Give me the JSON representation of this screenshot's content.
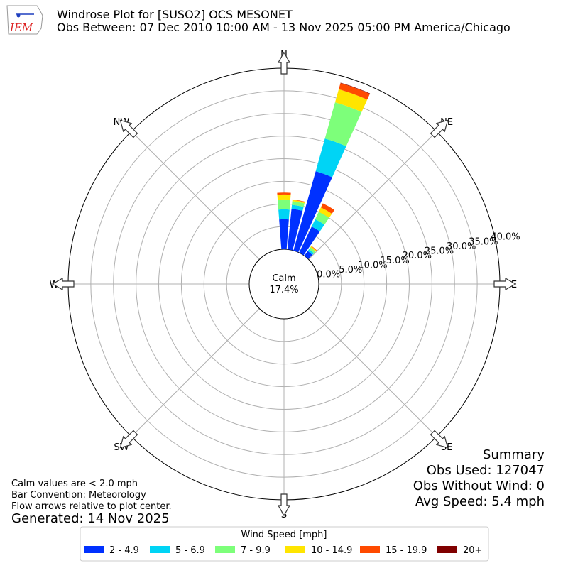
{
  "chart_data": {
    "type": "windrose",
    "title": "Windrose Plot for [SUSO2] OCS MESONET",
    "subtitle": "Obs Between: 07 Dec 2010 10:00 AM - 13 Nov 2025 05:00 PM America/Chicago",
    "logo": "IEM",
    "compass": [
      "N",
      "NE",
      "E",
      "SE",
      "S",
      "SW",
      "W",
      "NW"
    ],
    "directions": [
      0,
      10,
      20,
      30,
      40
    ],
    "series": [
      {
        "name": "2 - 4.9",
        "color": "#0031ff",
        "values": [
          6.6,
          9.0,
          18.2,
          6.4,
          1.3
        ]
      },
      {
        "name": "5 - 6.9",
        "color": "#00d4f5",
        "values": [
          2.2,
          0.9,
          7.5,
          1.8,
          0.5
        ]
      },
      {
        "name": "7 - 9.9",
        "color": "#7dff7a",
        "values": [
          2.2,
          0.8,
          8.3,
          1.8,
          0.5
        ]
      },
      {
        "name": "10 - 14.9",
        "color": "#ffe500",
        "values": [
          1.1,
          0.3,
          3.0,
          1.1,
          0.3
        ]
      },
      {
        "name": "15 - 19.9",
        "color": "#ff4a00",
        "values": [
          0.4,
          0.1,
          1.4,
          1.0,
          0.1
        ]
      },
      {
        "name": "20+",
        "color": "#800000",
        "values": [
          0,
          0,
          0.1,
          0,
          0
        ]
      }
    ],
    "rlim": [
      0,
      40
    ],
    "rticks": [
      {
        "value": 0,
        "label": "0.0%"
      },
      {
        "value": 5,
        "label": "5.0%"
      },
      {
        "value": 10,
        "label": "10.0%"
      },
      {
        "value": 15,
        "label": "15.0%"
      },
      {
        "value": 20,
        "label": "20.0%"
      },
      {
        "value": 25,
        "label": "25.0%"
      },
      {
        "value": 30,
        "label": "30.0%"
      },
      {
        "value": 35,
        "label": "35.0%"
      },
      {
        "value": 40,
        "label": "40.0%"
      }
    ],
    "calm": {
      "text": "Calm",
      "value": 17.4,
      "label": "17.4%"
    },
    "legend_title": "Wind Speed [mph]",
    "summary": [
      "Summary",
      "Obs Used: 127047",
      "Obs Without Wind: 0",
      "Avg Speed: 5.4 mph"
    ],
    "notes": [
      "Calm values are < 2.0 mph",
      "Bar Convention: Meteorology",
      "Flow arrows relative to plot center."
    ],
    "generated": "Generated: 14 Nov 2025"
  }
}
